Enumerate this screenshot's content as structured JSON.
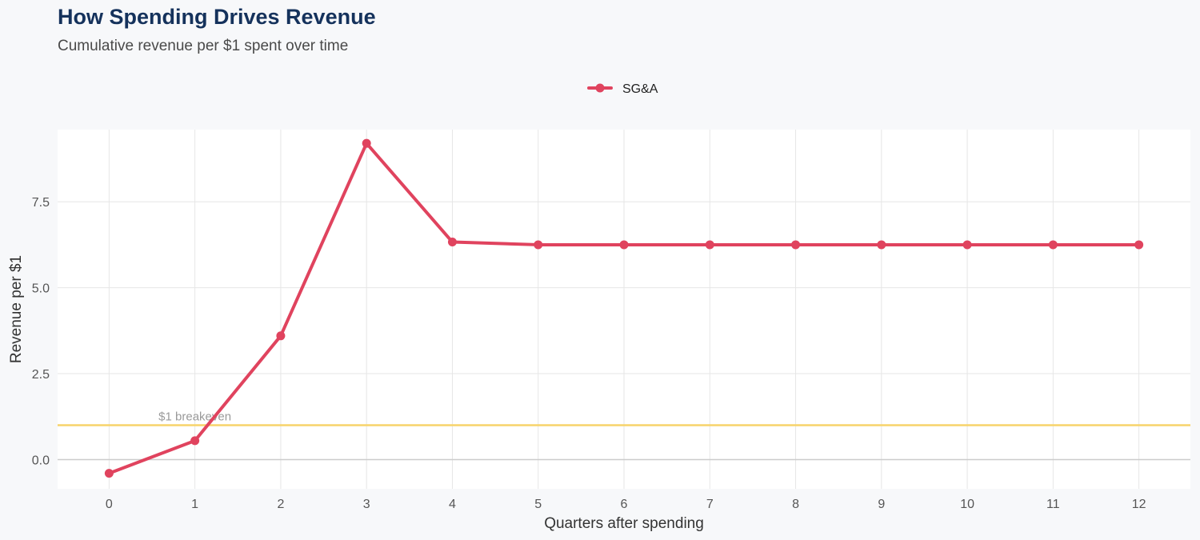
{
  "chart_data": {
    "type": "line",
    "title": "How Spending Drives Revenue",
    "subtitle": "Cumulative revenue per $1 spent over time",
    "xlabel": "Quarters after spending",
    "ylabel": "Revenue per $1",
    "x": [
      0,
      1,
      2,
      3,
      4,
      5,
      6,
      7,
      8,
      9,
      10,
      11,
      12
    ],
    "series": [
      {
        "name": "SG&A",
        "color": "#e0435e",
        "values": [
          -0.4,
          0.55,
          3.6,
          9.2,
          6.33,
          6.25,
          6.25,
          6.25,
          6.25,
          6.25,
          6.25,
          6.25,
          6.25
        ]
      }
    ],
    "xlim": [
      -0.6,
      12.6
    ],
    "ylim": [
      -0.85,
      9.6
    ],
    "y_ticks": [
      0,
      2.5,
      5,
      7.5
    ],
    "y_tick_labels": [
      "0.0",
      "2.5",
      "5.0",
      "7.5"
    ],
    "x_ticks": [
      0,
      1,
      2,
      3,
      4,
      5,
      6,
      7,
      8,
      9,
      10,
      11,
      12
    ],
    "x_tick_labels": [
      "0",
      "1",
      "2",
      "3",
      "4",
      "5",
      "6",
      "7",
      "8",
      "9",
      "10",
      "11",
      "12"
    ],
    "reference_line": {
      "y": 1,
      "label": "$1 breakeven",
      "label_x": 1,
      "color": "#f7d46b"
    },
    "zero_line_color": "#cccccc",
    "grid": true,
    "legend_position": "top"
  }
}
